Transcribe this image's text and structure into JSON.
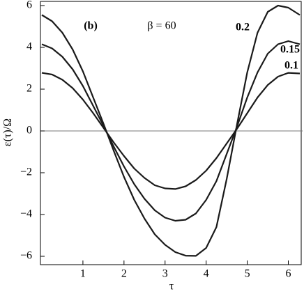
{
  "chart_data": {
    "type": "line",
    "panel_label": "(b)",
    "annotation": "β = 60",
    "x_label": "τ",
    "y_label": "ε(τ)/Ω",
    "x": [
      0,
      0.25,
      0.5,
      0.75,
      1.0,
      1.25,
      1.5,
      1.75,
      2.0,
      2.25,
      2.5,
      2.75,
      3.0,
      3.25,
      3.5,
      3.75,
      4.0,
      4.25,
      4.5,
      4.75,
      5.0,
      5.25,
      5.5,
      5.75,
      6.0,
      6.28
    ],
    "series": [
      {
        "name": "0.2",
        "color": "#1a1a1a",
        "values": [
          5.55,
          5.25,
          4.7,
          3.9,
          2.85,
          1.6,
          0.35,
          -0.95,
          -2.2,
          -3.3,
          -4.2,
          -4.95,
          -5.45,
          -5.8,
          -5.97,
          -5.98,
          -5.6,
          -4.6,
          -2.3,
          0.3,
          2.8,
          4.7,
          5.7,
          6.0,
          5.9,
          5.55
        ]
      },
      {
        "name": "0.15",
        "color": "#1a1a1a",
        "values": [
          4.15,
          3.95,
          3.55,
          2.95,
          2.15,
          1.2,
          0.25,
          -0.75,
          -1.7,
          -2.55,
          -3.25,
          -3.8,
          -4.15,
          -4.3,
          -4.25,
          -3.95,
          -3.3,
          -2.4,
          -1.1,
          0.2,
          1.6,
          2.8,
          3.7,
          4.15,
          4.3,
          4.15
        ]
      },
      {
        "name": "0.1",
        "color": "#1a1a1a",
        "values": [
          2.78,
          2.7,
          2.45,
          2.05,
          1.5,
          0.85,
          0.15,
          -0.55,
          -1.2,
          -1.8,
          -2.25,
          -2.6,
          -2.75,
          -2.78,
          -2.65,
          -2.35,
          -1.9,
          -1.3,
          -0.6,
          0.1,
          0.85,
          1.6,
          2.2,
          2.6,
          2.78,
          2.75
        ]
      }
    ],
    "xlim": [
      0,
      6.28
    ],
    "ylim": [
      -6.4,
      6.2
    ],
    "xticks": [
      1,
      2,
      3,
      4,
      5,
      6
    ],
    "yticks": [
      {
        "value": -6,
        "label": "−6"
      },
      {
        "value": -4,
        "label": "−4"
      },
      {
        "value": -2,
        "label": "−2"
      },
      0,
      2,
      4,
      6
    ]
  }
}
